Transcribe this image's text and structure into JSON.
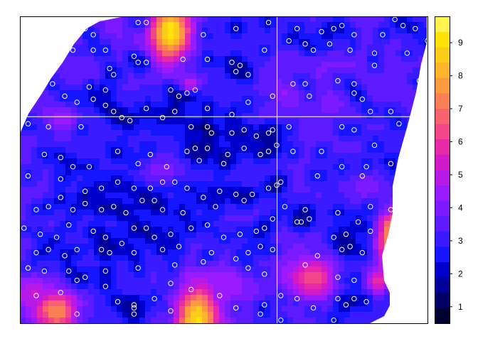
{
  "chart_data": {
    "type": "heatmap",
    "title": "",
    "xlabel": "",
    "ylabel": "",
    "grid": false,
    "legend_position": "right",
    "colorbar": {
      "ticks": [
        1,
        2,
        3,
        4,
        5,
        6,
        7,
        8,
        9
      ],
      "range": [
        0.5,
        9.8
      ],
      "colors": [
        "#000033",
        "#000066",
        "#00009a",
        "#0000cd",
        "#1515ff",
        "#3a1aff",
        "#5d1aff",
        "#7c1aff",
        "#9a1aff",
        "#b71ae6",
        "#d21ac8",
        "#e62aa8",
        "#f2468a",
        "#f7636e",
        "#fa7f55",
        "#fb9a3e",
        "#fcb42a",
        "#fccd18",
        "#fde30a",
        "#fff34f"
      ]
    },
    "reference_lines": {
      "horizontal_y_frac": 0.327,
      "vertical_x_frac": 0.631
    },
    "field": {
      "background_level": 3.3,
      "hotspots": [
        {
          "x": 0.37,
          "y": 0.05,
          "sx": 0.035,
          "sy": 0.07,
          "v": 9.2
        },
        {
          "x": 0.42,
          "y": 0.22,
          "sx": 0.02,
          "sy": 0.02,
          "v": 5.0
        },
        {
          "x": 0.09,
          "y": 0.96,
          "sx": 0.04,
          "sy": 0.05,
          "v": 7.5
        },
        {
          "x": 0.435,
          "y": 0.99,
          "sx": 0.035,
          "sy": 0.08,
          "v": 9.0
        },
        {
          "x": 0.92,
          "y": 0.72,
          "sx": 0.03,
          "sy": 0.07,
          "v": 8.5
        },
        {
          "x": 0.88,
          "y": 0.86,
          "sx": 0.02,
          "sy": 0.03,
          "v": 6.0
        },
        {
          "x": 0.72,
          "y": 0.85,
          "sx": 0.04,
          "sy": 0.05,
          "v": 6.5
        },
        {
          "x": 0.1,
          "y": 0.33,
          "sx": 0.03,
          "sy": 0.03,
          "v": 4.6
        },
        {
          "x": 0.5,
          "y": 0.88,
          "sx": 0.04,
          "sy": 0.04,
          "v": 4.6
        },
        {
          "x": 0.03,
          "y": 0.9,
          "sx": 0.03,
          "sy": 0.04,
          "v": 5.2
        },
        {
          "x": 0.65,
          "y": 0.25,
          "sx": 0.03,
          "sy": 0.03,
          "v": 4.3
        },
        {
          "x": 0.35,
          "y": 0.5,
          "sx": 0.05,
          "sy": 0.05,
          "v": 4.0
        },
        {
          "x": 0.85,
          "y": 0.55,
          "sx": 0.03,
          "sy": 0.04,
          "v": 4.2
        }
      ]
    },
    "points": [
      [
        0.29,
        0.02
      ],
      [
        0.31,
        0.02
      ],
      [
        0.61,
        0.02
      ],
      [
        0.92,
        0.01
      ],
      [
        0.16,
        0.04
      ],
      [
        0.18,
        0.06
      ],
      [
        0.45,
        0.06
      ],
      [
        0.53,
        0.04
      ],
      [
        0.68,
        0.04
      ],
      [
        0.74,
        0.05
      ],
      [
        0.77,
        0.04
      ],
      [
        0.79,
        0.03
      ],
      [
        0.82,
        0.06
      ],
      [
        0.89,
        0.06
      ],
      [
        0.94,
        0.03
      ],
      [
        0.97,
        0.04
      ],
      [
        1.0,
        0.08
      ],
      [
        0.13,
        0.11
      ],
      [
        0.18,
        0.11
      ],
      [
        0.21,
        0.11
      ],
      [
        0.28,
        0.13
      ],
      [
        0.29,
        0.15
      ],
      [
        0.4,
        0.14
      ],
      [
        0.46,
        0.14
      ],
      [
        0.52,
        0.15
      ],
      [
        0.54,
        0.16
      ],
      [
        0.6,
        0.11
      ],
      [
        0.66,
        0.08
      ],
      [
        0.7,
        0.09
      ],
      [
        0.72,
        0.11
      ],
      [
        0.76,
        0.09
      ],
      [
        0.81,
        0.11
      ],
      [
        0.87,
        0.12
      ],
      [
        0.95,
        0.12
      ],
      [
        0.22,
        0.17
      ],
      [
        0.23,
        0.19
      ],
      [
        0.31,
        0.15
      ],
      [
        0.53,
        0.18
      ],
      [
        0.56,
        0.19
      ],
      [
        0.67,
        0.22
      ],
      [
        0.7,
        0.22
      ],
      [
        0.78,
        0.21
      ],
      [
        0.82,
        0.22
      ],
      [
        0.87,
        0.16
      ],
      [
        0.98,
        0.21
      ],
      [
        0.08,
        0.22
      ],
      [
        0.17,
        0.23
      ],
      [
        0.21,
        0.24
      ],
      [
        0.37,
        0.24
      ],
      [
        0.39,
        0.26
      ],
      [
        0.41,
        0.25
      ],
      [
        0.43,
        0.24
      ],
      [
        0.11,
        0.26
      ],
      [
        0.14,
        0.28
      ],
      [
        0.18,
        0.27
      ],
      [
        0.21,
        0.29
      ],
      [
        0.31,
        0.3
      ],
      [
        0.38,
        0.31
      ],
      [
        0.46,
        0.3
      ],
      [
        0.52,
        0.32
      ],
      [
        0.56,
        0.28
      ],
      [
        0.62,
        0.26
      ],
      [
        0.71,
        0.26
      ],
      [
        0.82,
        0.25
      ],
      [
        0.84,
        0.27
      ],
      [
        0.86,
        0.31
      ],
      [
        0.91,
        0.31
      ],
      [
        0.93,
        0.35
      ],
      [
        0.02,
        0.35
      ],
      [
        0.07,
        0.36
      ],
      [
        0.15,
        0.36
      ],
      [
        0.23,
        0.31
      ],
      [
        0.25,
        0.33
      ],
      [
        0.27,
        0.34
      ],
      [
        0.35,
        0.33
      ],
      [
        0.42,
        0.36
      ],
      [
        0.46,
        0.36
      ],
      [
        0.47,
        0.38
      ],
      [
        0.52,
        0.38
      ],
      [
        0.55,
        0.37
      ],
      [
        0.58,
        0.39
      ],
      [
        0.61,
        0.38
      ],
      [
        0.62,
        0.37
      ],
      [
        0.66,
        0.36
      ],
      [
        0.79,
        0.36
      ],
      [
        0.82,
        0.37
      ],
      [
        0.87,
        0.42
      ],
      [
        0.06,
        0.45
      ],
      [
        0.1,
        0.46
      ],
      [
        0.13,
        0.49
      ],
      [
        0.17,
        0.49
      ],
      [
        0.24,
        0.44
      ],
      [
        0.29,
        0.48
      ],
      [
        0.32,
        0.45
      ],
      [
        0.36,
        0.49
      ],
      [
        0.41,
        0.44
      ],
      [
        0.43,
        0.43
      ],
      [
        0.44,
        0.47
      ],
      [
        0.46,
        0.43
      ],
      [
        0.5,
        0.48
      ],
      [
        0.51,
        0.45
      ],
      [
        0.55,
        0.43
      ],
      [
        0.59,
        0.45
      ],
      [
        0.61,
        0.44
      ],
      [
        0.63,
        0.42
      ],
      [
        0.67,
        0.44
      ],
      [
        0.74,
        0.44
      ],
      [
        0.79,
        0.49
      ],
      [
        0.85,
        0.49
      ],
      [
        0.91,
        0.48
      ],
      [
        0.02,
        0.52
      ],
      [
        0.1,
        0.53
      ],
      [
        0.16,
        0.57
      ],
      [
        0.2,
        0.56
      ],
      [
        0.24,
        0.54
      ],
      [
        0.28,
        0.56
      ],
      [
        0.32,
        0.56
      ],
      [
        0.35,
        0.54
      ],
      [
        0.38,
        0.54
      ],
      [
        0.41,
        0.56
      ],
      [
        0.45,
        0.59
      ],
      [
        0.49,
        0.57
      ],
      [
        0.53,
        0.58
      ],
      [
        0.57,
        0.58
      ],
      [
        0.61,
        0.56
      ],
      [
        0.63,
        0.55
      ],
      [
        0.64,
        0.54
      ],
      [
        0.73,
        0.52
      ],
      [
        0.84,
        0.52
      ],
      [
        0.04,
        0.63
      ],
      [
        0.07,
        0.62
      ],
      [
        0.1,
        0.59
      ],
      [
        0.13,
        0.63
      ],
      [
        0.16,
        0.61
      ],
      [
        0.2,
        0.63
      ],
      [
        0.23,
        0.62
      ],
      [
        0.26,
        0.64
      ],
      [
        0.3,
        0.6
      ],
      [
        0.33,
        0.6
      ],
      [
        0.35,
        0.63
      ],
      [
        0.4,
        0.64
      ],
      [
        0.48,
        0.62
      ],
      [
        0.55,
        0.6
      ],
      [
        0.62,
        0.66
      ],
      [
        0.65,
        0.62
      ],
      [
        0.68,
        0.67
      ],
      [
        0.7,
        0.63
      ],
      [
        0.78,
        0.64
      ],
      [
        0.86,
        0.62
      ],
      [
        0.91,
        0.63
      ],
      [
        0.01,
        0.69
      ],
      [
        0.05,
        0.71
      ],
      [
        0.09,
        0.72
      ],
      [
        0.12,
        0.68
      ],
      [
        0.18,
        0.7
      ],
      [
        0.21,
        0.72
      ],
      [
        0.28,
        0.69
      ],
      [
        0.31,
        0.69
      ],
      [
        0.33,
        0.72
      ],
      [
        0.37,
        0.71
      ],
      [
        0.42,
        0.69
      ],
      [
        0.46,
        0.68
      ],
      [
        0.5,
        0.72
      ],
      [
        0.54,
        0.71
      ],
      [
        0.58,
        0.7
      ],
      [
        0.6,
        0.69
      ],
      [
        0.69,
        0.67
      ],
      [
        0.71,
        0.66
      ],
      [
        0.77,
        0.72
      ],
      [
        0.8,
        0.71
      ],
      [
        0.83,
        0.67
      ],
      [
        0.86,
        0.7
      ],
      [
        0.04,
        0.77
      ],
      [
        0.07,
        0.76
      ],
      [
        0.11,
        0.78
      ],
      [
        0.14,
        0.76
      ],
      [
        0.2,
        0.76
      ],
      [
        0.22,
        0.77
      ],
      [
        0.25,
        0.74
      ],
      [
        0.28,
        0.77
      ],
      [
        0.35,
        0.76
      ],
      [
        0.39,
        0.75
      ],
      [
        0.47,
        0.77
      ],
      [
        0.53,
        0.79
      ],
      [
        0.56,
        0.77
      ],
      [
        0.59,
        0.75
      ],
      [
        0.62,
        0.76
      ],
      [
        0.73,
        0.78
      ],
      [
        0.79,
        0.76
      ],
      [
        0.81,
        0.75
      ],
      [
        0.84,
        0.77
      ],
      [
        0.02,
        0.82
      ],
      [
        0.06,
        0.83
      ],
      [
        0.12,
        0.83
      ],
      [
        0.16,
        0.85
      ],
      [
        0.21,
        0.83
      ],
      [
        0.29,
        0.82
      ],
      [
        0.38,
        0.81
      ],
      [
        0.45,
        0.8
      ],
      [
        0.56,
        0.82
      ],
      [
        0.6,
        0.84
      ],
      [
        0.7,
        0.81
      ],
      [
        0.78,
        0.85
      ],
      [
        0.82,
        0.86
      ],
      [
        0.04,
        0.91
      ],
      [
        0.1,
        0.9
      ],
      [
        0.14,
        0.86
      ],
      [
        0.21,
        0.88
      ],
      [
        0.24,
        0.93
      ],
      [
        0.28,
        0.95
      ],
      [
        0.33,
        0.92
      ],
      [
        0.37,
        0.87
      ],
      [
        0.42,
        0.89
      ],
      [
        0.49,
        0.91
      ],
      [
        0.53,
        0.95
      ],
      [
        0.6,
        0.94
      ],
      [
        0.64,
        0.91
      ],
      [
        0.68,
        0.92
      ],
      [
        0.72,
        0.95
      ],
      [
        0.78,
        0.92
      ],
      [
        0.82,
        0.92
      ],
      [
        0.85,
        0.93
      ],
      [
        0.92,
        0.9
      ],
      [
        0.14,
        0.97
      ],
      [
        0.28,
        0.97
      ],
      [
        0.37,
        0.96
      ],
      [
        0.59,
        0.97
      ],
      [
        0.64,
        0.99
      ],
      [
        0.77,
        0.99
      ],
      [
        0.8,
        0.94
      ],
      [
        0.28,
        0.94
      ]
    ]
  }
}
